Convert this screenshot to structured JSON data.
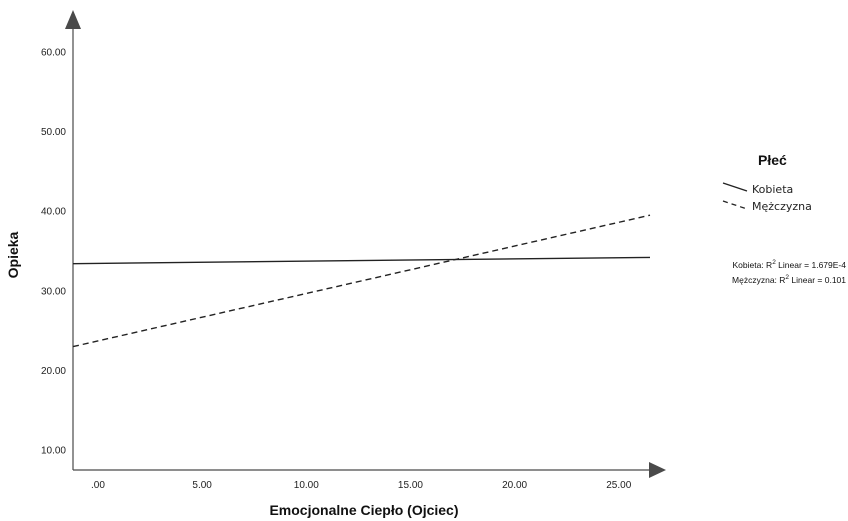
{
  "chart_data": {
    "type": "line",
    "title": "",
    "xlabel": "Emocjonalne Ciepło (Ojciec)",
    "ylabel": "Opieka",
    "xlim": [
      -1.2,
      26.5
    ],
    "ylim": [
      7.5,
      63
    ],
    "x_ticks": [
      0,
      5,
      10,
      15,
      20,
      25
    ],
    "x_tick_labels": [
      ".00",
      "5.00",
      "10.00",
      "15.00",
      "20.00",
      "25.00"
    ],
    "y_ticks": [
      10,
      20,
      30,
      40,
      50,
      60
    ],
    "y_tick_labels": [
      "10.00",
      "20.00",
      "30.00",
      "40.00",
      "50.00",
      "60.00"
    ],
    "grid": false,
    "legend": {
      "title": "Płeć",
      "placement": "right",
      "entries": [
        {
          "label": "Kobieta",
          "style": "solid"
        },
        {
          "label": "Mężczyzna",
          "style": "dashed"
        }
      ]
    },
    "series": [
      {
        "name": "Kobieta",
        "style": "solid",
        "color": "#222222",
        "x": [
          -1.2,
          26.5
        ],
        "y": [
          33.4,
          34.2
        ]
      },
      {
        "name": "Mężczyzna",
        "style": "dashed",
        "color": "#222222",
        "x": [
          -1.2,
          26.5
        ],
        "y": [
          23.0,
          39.5
        ]
      }
    ],
    "annotations": [
      {
        "label": "Kobieta: R",
        "sup": "2",
        "rest": " Linear = 1.679E-4"
      },
      {
        "label": "Mężczyzna: R",
        "sup": "2",
        "rest": " Linear = 0.101"
      }
    ]
  }
}
